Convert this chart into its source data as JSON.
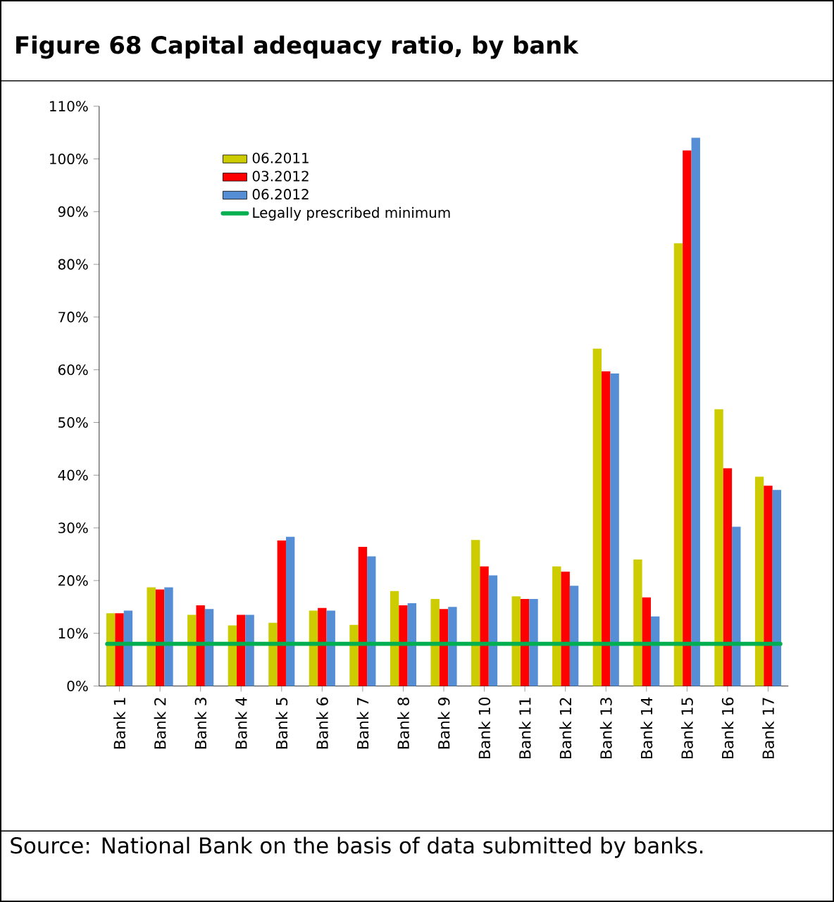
{
  "chart_data": {
    "type": "bar",
    "title": "Figure 68 Capital adequacy ratio, by bank",
    "categories": [
      "Bank 1",
      "Bank 2",
      "Bank 3",
      "Bank 4",
      "Bank 5",
      "Bank 6",
      "Bank 7",
      "Bank 8",
      "Bank 9",
      "Bank 10",
      "Bank 11",
      "Bank 12",
      "Bank 13",
      "Bank 14",
      "Bank 15",
      "Bank 16",
      "Bank 17"
    ],
    "series": [
      {
        "name": "06.2011",
        "color": "#cccc00",
        "values": [
          13.8,
          18.7,
          13.5,
          11.5,
          12,
          14.3,
          11.6,
          18,
          16.5,
          27.7,
          17,
          22.7,
          64,
          24,
          84,
          52.5,
          39.7
        ]
      },
      {
        "name": "03.2012",
        "color": "#ff0000",
        "values": [
          13.8,
          18.3,
          15.3,
          13.5,
          27.6,
          14.8,
          26.4,
          15.3,
          14.6,
          22.7,
          16.5,
          21.7,
          59.7,
          16.8,
          101.6,
          41.3,
          38
        ]
      },
      {
        "name": "06.2012",
        "color": "#558ed5",
        "values": [
          14.3,
          18.7,
          14.6,
          13.5,
          28.3,
          14.3,
          24.6,
          15.7,
          15,
          21,
          16.5,
          19,
          59.3,
          13.2,
          104,
          30.2,
          37.2
        ]
      }
    ],
    "ylim": [
      0,
      110
    ],
    "yticks": [
      {
        "value": 0,
        "label": "0%"
      },
      {
        "value": 10,
        "label": "10%"
      },
      {
        "value": 20,
        "label": "20%"
      },
      {
        "value": 30,
        "label": "30%"
      },
      {
        "value": 40,
        "label": "40%"
      },
      {
        "value": 50,
        "label": "50%"
      },
      {
        "value": 60,
        "label": "60%"
      },
      {
        "value": 70,
        "label": "70%"
      },
      {
        "value": 80,
        "label": "80%"
      },
      {
        "value": 90,
        "label": "90%"
      },
      {
        "value": 100,
        "label": "100%"
      },
      {
        "value": 110,
        "label": "110%"
      }
    ],
    "ref_lines": [
      {
        "axis": "y",
        "value": 8,
        "label": "Legally prescribed minimum",
        "color": "#00b050"
      }
    ],
    "legend": "top left",
    "annotations": [
      "Source: National Bank on the basis of data submitted by banks."
    ]
  }
}
